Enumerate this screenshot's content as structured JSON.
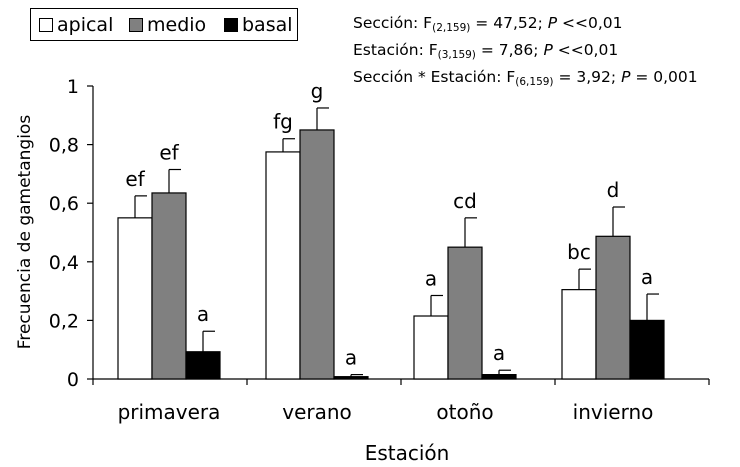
{
  "chart_data": {
    "type": "bar",
    "categories": [
      "primavera",
      "verano",
      "otoño",
      "invierno"
    ],
    "series": [
      {
        "name": "apical",
        "color": "#ffffff",
        "values": [
          0.55,
          0.775,
          0.215,
          0.305
        ],
        "errors": [
          0.075,
          0.045,
          0.07,
          0.07
        ],
        "labels": [
          "ef",
          "fg",
          "a",
          "bc"
        ]
      },
      {
        "name": "medio",
        "color": "#808080",
        "values": [
          0.635,
          0.85,
          0.45,
          0.487
        ],
        "errors": [
          0.08,
          0.075,
          0.1,
          0.1
        ],
        "labels": [
          "ef",
          "g",
          "cd",
          "d"
        ]
      },
      {
        "name": "basal",
        "color": "#000000",
        "values": [
          0.093,
          0.008,
          0.015,
          0.2
        ],
        "errors": [
          0.07,
          0.007,
          0.015,
          0.09
        ],
        "labels": [
          "a",
          "a",
          "a",
          "a"
        ]
      }
    ],
    "xlabel": "Estación",
    "ylabel": "Frecuencia de gametangios",
    "ylim": [
      0,
      1
    ],
    "yticks": [
      "0",
      "0,2",
      "0,4",
      "0,6",
      "0,8",
      "1"
    ],
    "ytick_values": [
      0,
      0.2,
      0.4,
      0.6,
      0.8,
      1
    ],
    "grid": false,
    "legend_position": "top-left",
    "annotations": {
      "line1": {
        "label": "Sección: F",
        "sub": "(2,159)",
        "mid": " = 47,52; ",
        "stat": "P",
        "tail": " <<0,01"
      },
      "line2": {
        "label": "Estación: F",
        "sub": "(3,159)",
        "mid": " = 7,86; ",
        "stat": "P",
        "tail": " <<0,01"
      },
      "line3": {
        "label": "Sección * Estación: F",
        "sub": "(6,159)",
        "mid": " = 3,92; ",
        "stat": "P",
        "tail": " = 0,001"
      }
    }
  }
}
